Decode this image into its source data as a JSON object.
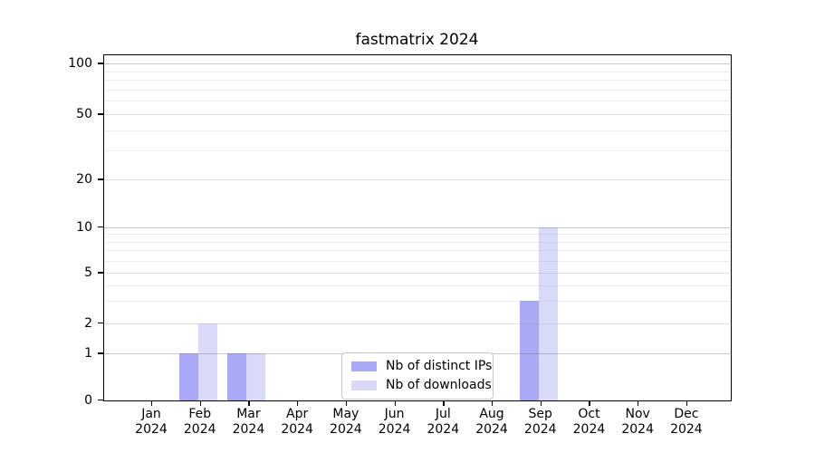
{
  "title": "fastmatrix 2024",
  "chart_data": {
    "type": "bar",
    "title": "fastmatrix 2024",
    "categories": [
      "Jan 2024",
      "Feb 2024",
      "Mar 2024",
      "Apr 2024",
      "May 2024",
      "Jun 2024",
      "Jul 2024",
      "Aug 2024",
      "Sep 2024",
      "Oct 2024",
      "Nov 2024",
      "Dec 2024"
    ],
    "series": [
      {
        "name": "Nb of distinct IPs",
        "color": "#a9a9f7",
        "values": [
          0,
          1,
          1,
          0,
          0,
          0,
          0,
          0,
          3,
          0,
          0,
          0
        ]
      },
      {
        "name": "Nb of downloads",
        "color": "#d9d9fa",
        "values": [
          0,
          2,
          1,
          0,
          0,
          0,
          0,
          0,
          10,
          0,
          0,
          0
        ]
      }
    ],
    "xlabel": "",
    "ylabel": "",
    "y_ticks": [
      0,
      1,
      2,
      5,
      10,
      20,
      50,
      100
    ],
    "y_tick_labels": [
      "0",
      "1",
      "2",
      "5",
      "10",
      "20",
      "50",
      "100"
    ],
    "y_scale": "log-like",
    "ylim": [
      0,
      115
    ],
    "grid": true,
    "legend_position": "lower center"
  },
  "legend": {
    "items": [
      {
        "label": "Nb of distinct IPs",
        "color": "#a9a9f7"
      },
      {
        "label": "Nb of downloads",
        "color": "#d9d9fa"
      }
    ]
  }
}
